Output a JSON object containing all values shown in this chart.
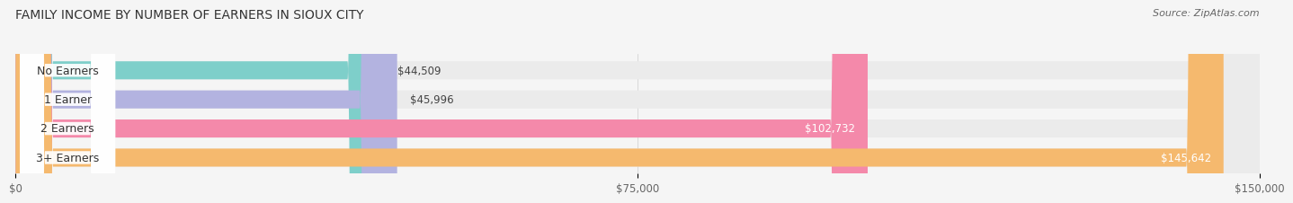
{
  "title": "FAMILY INCOME BY NUMBER OF EARNERS IN SIOUX CITY",
  "source": "Source: ZipAtlas.com",
  "categories": [
    "No Earners",
    "1 Earner",
    "2 Earners",
    "3+ Earners"
  ],
  "values": [
    44509,
    45996,
    102732,
    145642
  ],
  "labels": [
    "$44,509",
    "$45,996",
    "$102,732",
    "$145,642"
  ],
  "bar_colors": [
    "#7ecfca",
    "#b3b3e0",
    "#f489aa",
    "#f5b96e"
  ],
  "bar_bg_color": "#ebebeb",
  "label_dark_color": "#444444",
  "label_light_color": "#ffffff",
  "max_value": 150000,
  "xticks": [
    0,
    75000,
    150000
  ],
  "xtick_labels": [
    "$0",
    "$75,000",
    "$150,000"
  ],
  "title_fontsize": 10,
  "source_fontsize": 8,
  "label_fontsize": 8.5,
  "category_fontsize": 9,
  "background_color": "#f5f5f5",
  "label_threshold": 60000
}
